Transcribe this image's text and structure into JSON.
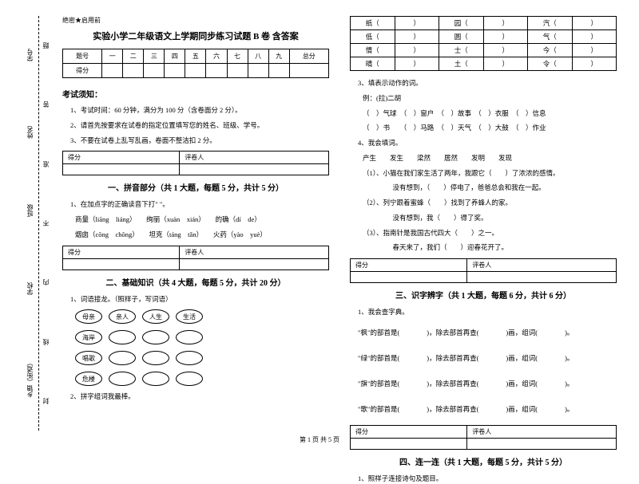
{
  "binding": {
    "labels": [
      "乡镇（街道）",
      "学校",
      "班级",
      "姓名",
      "学号"
    ],
    "notes": [
      "封",
      "线",
      "内",
      "不",
      "准",
      "答",
      "题"
    ]
  },
  "header_small": "绝密★启用前",
  "title": "实验小学二年级语文上学期同步练习试题 B 卷  含答案",
  "score_table": {
    "row1": [
      "题号",
      "一",
      "二",
      "三",
      "四",
      "五",
      "六",
      "七",
      "八",
      "九",
      "总分"
    ],
    "row2_label": "得分"
  },
  "notice_heading": "考试须知：",
  "notices": [
    "1、考试时间：60 分钟，满分为 100 分（含卷面分 2 分）。",
    "2、请首先按要求在试卷的指定位置填写您的姓名、班级、学号。",
    "3、不要在试卷上乱写乱画，卷面不整洁扣 2 分。"
  ],
  "mini_table": {
    "c1": "得分",
    "c2": "评卷人"
  },
  "sec1_title": "一、拼音部分（共 1 大题，每题 5 分，共计 5 分）",
  "sec1_q": "1、在加点字的正确读音下打\" \"。",
  "sec1_lines": [
    "商量（liāng　liáng）　　绚丽（xuàn　xián）　　的确（dí　de）",
    "烟囱（cōng　chōng）　　坦克（táng　tǎn）　　火药（yào　yuè）"
  ],
  "sec2_title": "二、基础知识（共 4 大题，每题 5 分，共计 20 分）",
  "sec2_q1": "1、词语接龙。（照样子，写词语）",
  "ovals": [
    [
      "母亲",
      "亲人",
      "人生",
      "生活"
    ],
    [
      "海岸",
      "",
      "",
      ""
    ],
    [
      "唱歌",
      "",
      "",
      ""
    ],
    [
      "危楼",
      "",
      "",
      ""
    ]
  ],
  "sec2_q2": "2、拼字组词我最棒。",
  "char_table": [
    [
      "纸（",
      "）",
      "园（",
      "）",
      "汽（",
      "）"
    ],
    [
      "低（",
      "）",
      "圆（",
      "）",
      "气（",
      "）"
    ],
    [
      "情（",
      "）",
      "士（",
      "）",
      "今（",
      "）"
    ],
    [
      "晴（",
      "）",
      "土（",
      "）",
      "令（",
      "）"
    ]
  ],
  "sec2_q3": "3、填表示动作的词。",
  "sec2_q3_eg": "例：(拉)二胡",
  "sec2_q3_lines": [
    "（　）气球　（　）窗户　（　）故事　（　）衣服　（　）信息",
    "（　）书　　（　）马路　（　）天气　（　）大鼓　（　）作业"
  ],
  "sec2_q4": "4、我会填词。",
  "sec2_q4_words": "产生　　发生　　梁然　　居然　　发明　　发现",
  "sec2_q4_items": [
    "（1）、小猫在我们家生活了两年，我跟它（　　）了浓浓的感情。",
    "　　　没有想到，（　　）停电了，爸爸总会和我在一起。",
    "（2）、列宁跟着蜜蜂（　　）找到了养蜂人的家。",
    "　　　没有想到，我（　　）得了奖。",
    "（3）、指南针是我国古代四大（　　）之一。",
    "　　　春天来了，我们（　　）迎春花开了。"
  ],
  "sec3_title": "三、识字辨字（共 1 大题，每题 6 分，共计 6 分）",
  "sec3_q": "1、我会查字典。",
  "sec3_lines": [
    "\"枫\"的部首是(　　　　)，除去部首再查(　　　　)画，组词(　　　　)。",
    "\"绿\"的部首是(　　　　)，除去部首再查(　　　　)画，组词(　　　　)。",
    "\"旗\"的部首是(　　　　)，除去部首再查(　　　　)画，组词(　　　　)。",
    "\"歌\"的部首是(　　　　)，除去部首再查(　　　　)画，组词(　　　　)。"
  ],
  "sec4_title": "四、连一连（共 1 大题，每题 5 分，共计 5 分）",
  "sec4_q": "1、照样子连接诗句及题目。",
  "footer": "第 1 页 共 5 页"
}
